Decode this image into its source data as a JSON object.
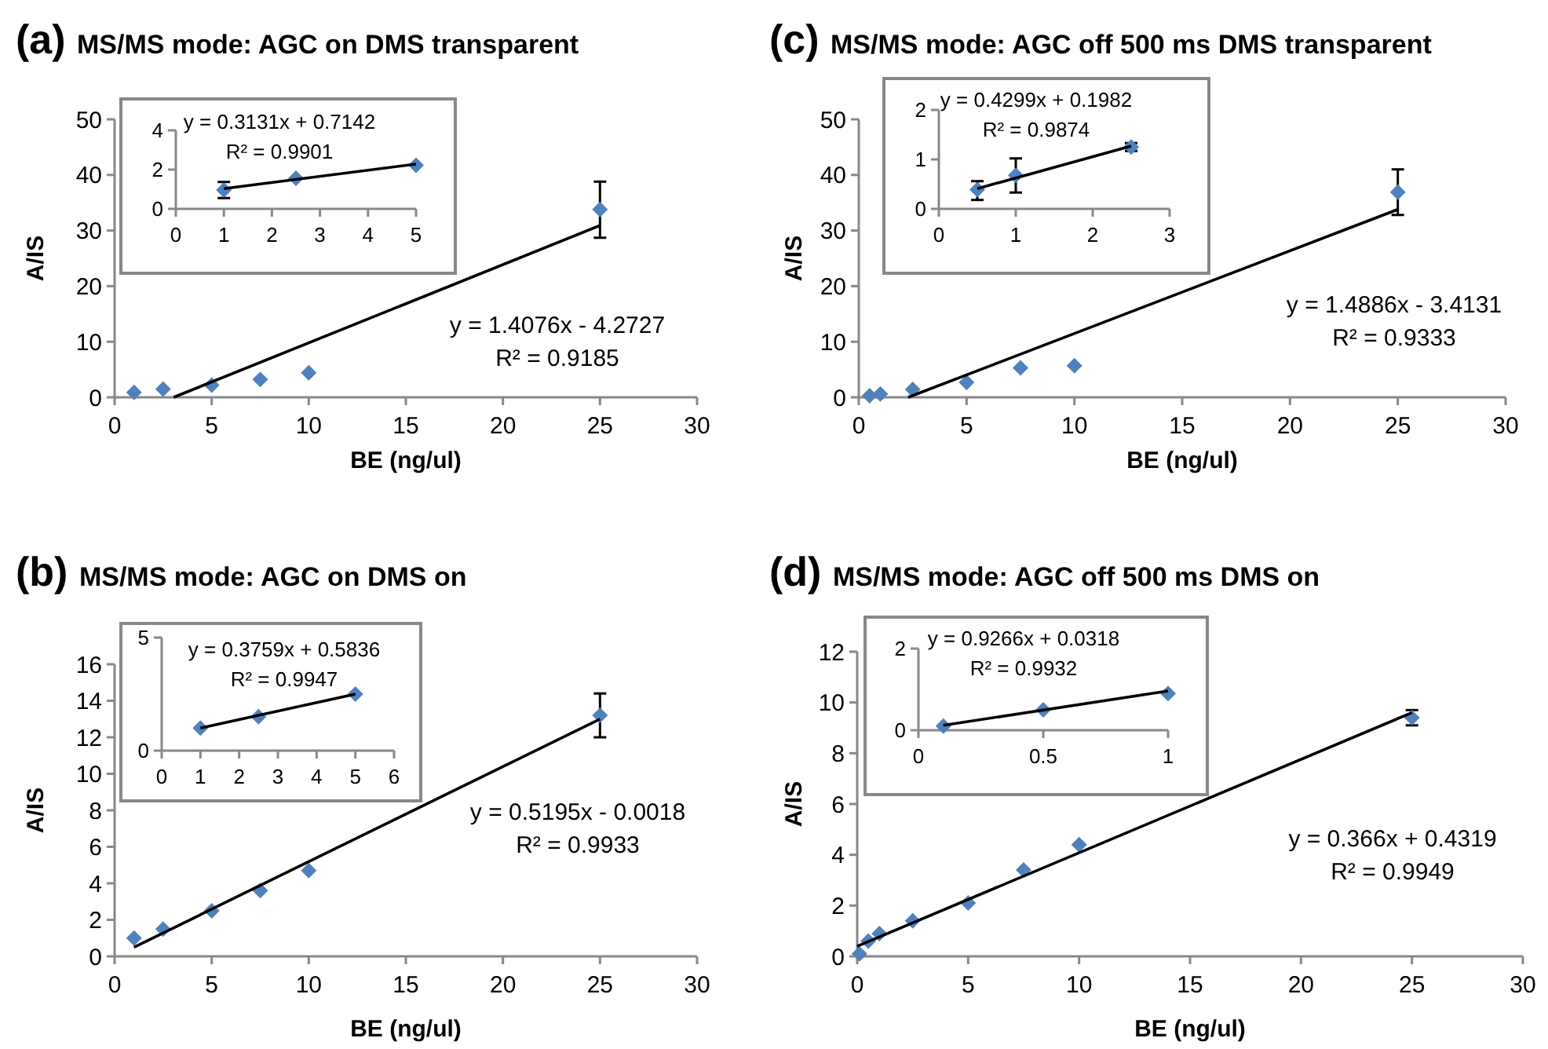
{
  "chart_data": [
    {
      "type": "scatter",
      "title": "MS/MS mode: AGC on DMS transparent",
      "xlabel": "BE (ng/ul)",
      "ylabel": "A/IS",
      "annotations": [
        "(a)",
        "y = 1.4076x - 4.2727",
        "R² = 0.9185"
      ],
      "xlim": [
        0,
        30
      ],
      "ylim": [
        0,
        50
      ],
      "xticks": [
        0,
        5,
        10,
        15,
        20,
        25,
        30
      ],
      "yticks": [
        0,
        10,
        20,
        30,
        40,
        50
      ],
      "series": [
        {
          "color": "#4f81bd",
          "marker": "diamond",
          "x": [
            1,
            2.5,
            5,
            7.5,
            10,
            25
          ],
          "values": [
            0.9,
            1.5,
            2.2,
            3.2,
            4.4,
            33.8
          ],
          "errors": [
            null,
            null,
            null,
            null,
            null,
            [
              28.7,
              38.8
            ]
          ]
        },
        {
          "type": "line",
          "marker": "none",
          "color": "#000000",
          "x": [
            3.04,
            25
          ],
          "values": [
            0,
            30.9
          ]
        }
      ]
    },
    {
      "type": "scatter",
      "annotations": [
        "y = 0.3131x + 0.7142",
        "R² = 0.9901"
      ],
      "xlim": [
        0,
        5
      ],
      "ylim": [
        0,
        4
      ],
      "xticks": [
        0,
        1,
        2,
        3,
        4,
        5
      ],
      "yticks": [
        0,
        2,
        4
      ],
      "series": [
        {
          "color": "#4f81bd",
          "marker": "diamond",
          "x": [
            1,
            2.5,
            5
          ],
          "values": [
            0.96,
            1.56,
            2.22
          ],
          "errors": [
            [
              0.55,
              1.37
            ],
            null,
            null
          ]
        },
        {
          "type": "line",
          "marker": "none",
          "color": "#000000",
          "x": [
            1,
            5
          ],
          "values": [
            1.03,
            2.28
          ]
        }
      ]
    },
    {
      "type": "scatter",
      "title": "MS/MS mode: AGC off 500 ms DMS transparent",
      "xlabel": "BE (ng/ul)",
      "ylabel": "A/IS",
      "annotations": [
        "(c)",
        "y = 1.4886x - 3.4131",
        "R² = 0.9333"
      ],
      "xlim": [
        0,
        30
      ],
      "ylim": [
        0,
        50
      ],
      "xticks": [
        0,
        5,
        10,
        15,
        20,
        25,
        30
      ],
      "yticks": [
        0,
        10,
        20,
        30,
        40,
        50
      ],
      "series": [
        {
          "color": "#4f81bd",
          "marker": "diamond",
          "x": [
            0.5,
            1,
            2.5,
            5,
            7.5,
            10,
            25
          ],
          "values": [
            0.3,
            0.6,
            1.4,
            2.7,
            5.3,
            5.7,
            36.9
          ],
          "errors": [
            null,
            null,
            null,
            null,
            null,
            null,
            [
              32.8,
              41.0
            ]
          ]
        },
        {
          "type": "line",
          "marker": "none",
          "color": "#000000",
          "x": [
            2.29,
            25
          ],
          "values": [
            0,
            33.8
          ]
        }
      ]
    },
    {
      "type": "scatter",
      "annotations": [
        "y = 0.4299x + 0.1982",
        "R² = 0.9874"
      ],
      "xlim": [
        0,
        3
      ],
      "ylim": [
        0,
        2
      ],
      "xticks": [
        0,
        1,
        2,
        3
      ],
      "yticks": [
        0,
        1,
        2
      ],
      "series": [
        {
          "color": "#4f81bd",
          "marker": "diamond",
          "x": [
            0.5,
            1,
            2.5
          ],
          "values": [
            0.39,
            0.68,
            1.25
          ],
          "errors": [
            [
              0.18,
              0.56
            ],
            [
              0.33,
              1.02
            ],
            [
              1.17,
              1.33
            ]
          ]
        },
        {
          "type": "line",
          "marker": "none",
          "color": "#000000",
          "x": [
            0.5,
            2.5
          ],
          "values": [
            0.41,
            1.27
          ]
        }
      ]
    },
    {
      "type": "scatter",
      "title": "MS/MS mode: AGC on DMS on",
      "xlabel": "BE (ng/ul)",
      "ylabel": "A/IS",
      "annotations": [
        "(b)",
        "y = 0.5195x - 0.0018",
        "R² = 0.9933"
      ],
      "xlim": [
        0,
        30
      ],
      "ylim": [
        0,
        16
      ],
      "xticks": [
        0,
        5,
        10,
        15,
        20,
        25,
        30
      ],
      "yticks": [
        0,
        2,
        4,
        6,
        8,
        10,
        12,
        14,
        16
      ],
      "series": [
        {
          "color": "#4f81bd",
          "marker": "diamond",
          "x": [
            1,
            2.5,
            5,
            7.5,
            10,
            25
          ],
          "values": [
            1.0,
            1.5,
            2.5,
            3.6,
            4.7,
            13.2
          ],
          "errors": [
            null,
            null,
            null,
            null,
            null,
            [
              12.0,
              14.4
            ]
          ]
        },
        {
          "type": "line",
          "marker": "none",
          "color": "#000000",
          "x": [
            1,
            25
          ],
          "values": [
            0.5,
            13.0
          ]
        }
      ]
    },
    {
      "type": "scatter",
      "annotations": [
        "y = 0.3759x + 0.5836",
        "R² = 0.9947"
      ],
      "xlim": [
        0,
        6
      ],
      "ylim": [
        0,
        5
      ],
      "xticks": [
        0,
        1,
        2,
        3,
        4,
        5,
        6
      ],
      "yticks": [
        0,
        5
      ],
      "series": [
        {
          "color": "#4f81bd",
          "marker": "diamond",
          "x": [
            1,
            2.5,
            5
          ],
          "values": [
            1.0,
            1.5,
            2.5
          ]
        },
        {
          "type": "line",
          "marker": "none",
          "color": "#000000",
          "x": [
            1,
            5
          ],
          "values": [
            1.0,
            2.5
          ]
        }
      ]
    },
    {
      "type": "scatter",
      "title": "MS/MS mode: AGC off 500 ms DMS on",
      "xlabel": "BE (ng/ul)",
      "ylabel": "A/IS",
      "annotations": [
        "(d)",
        "y = 0.366x + 0.4319",
        "R² = 0.9949"
      ],
      "xlim": [
        0,
        30
      ],
      "ylim": [
        0,
        12
      ],
      "xticks": [
        0,
        5,
        10,
        15,
        20,
        25,
        30
      ],
      "yticks": [
        0,
        2,
        4,
        6,
        8,
        10,
        12
      ],
      "series": [
        {
          "color": "#4f81bd",
          "marker": "diamond",
          "x": [
            0.1,
            0.5,
            1,
            2.5,
            5,
            7.5,
            10,
            25
          ],
          "values": [
            0.1,
            0.6,
            0.9,
            1.4,
            2.1,
            3.4,
            4.4,
            9.4
          ],
          "errors": [
            null,
            null,
            null,
            null,
            null,
            null,
            null,
            [
              9.1,
              9.7
            ]
          ]
        },
        {
          "type": "line",
          "marker": "none",
          "color": "#000000",
          "x": [
            0,
            25
          ],
          "values": [
            0.4,
            9.6
          ]
        }
      ]
    },
    {
      "type": "scatter",
      "annotations": [
        "y = 0.9266x + 0.0318",
        "R² = 0.9932"
      ],
      "xlim": [
        0,
        1
      ],
      "ylim": [
        0,
        2
      ],
      "xticks": [
        0,
        0.5,
        1
      ],
      "yticks": [
        0,
        2
      ],
      "series": [
        {
          "color": "#4f81bd",
          "marker": "diamond",
          "x": [
            0.1,
            0.5,
            1
          ],
          "values": [
            0.1,
            0.5,
            0.9
          ]
        },
        {
          "type": "line",
          "marker": "none",
          "color": "#000000",
          "x": [
            0.1,
            1
          ],
          "values": [
            0.12,
            0.96
          ]
        }
      ]
    }
  ]
}
